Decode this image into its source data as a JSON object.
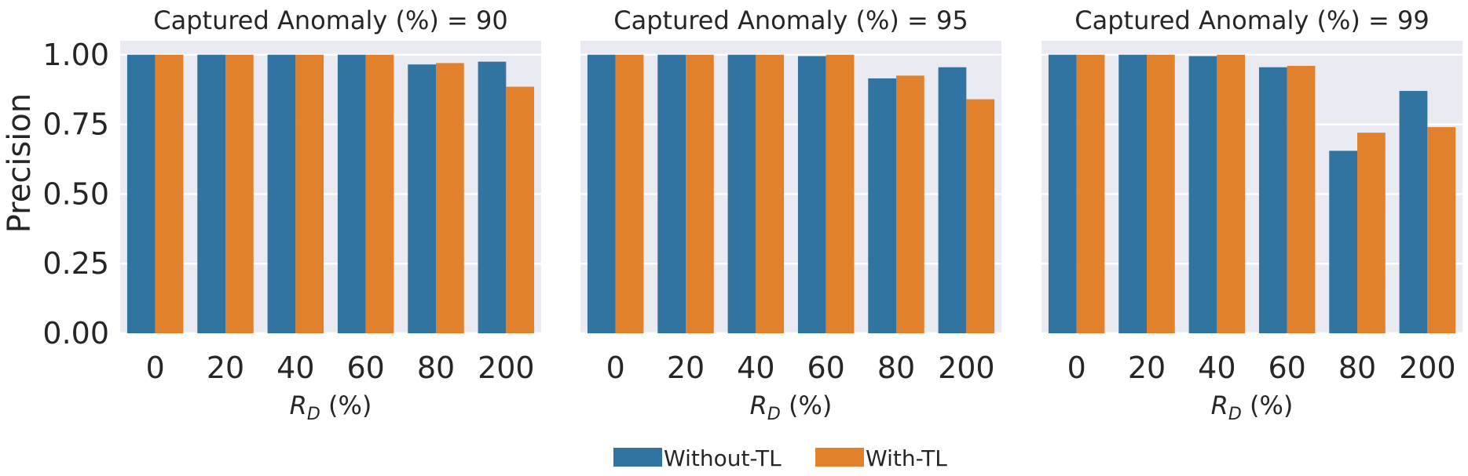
{
  "chart_data": [
    {
      "type": "bar",
      "title": "Captured Anomaly (%) = 90",
      "categories": [
        "0",
        "20",
        "40",
        "60",
        "80",
        "200"
      ],
      "series": [
        {
          "name": "Without-TL",
          "values": [
            1.0,
            1.0,
            1.0,
            1.0,
            0.965,
            0.975
          ]
        },
        {
          "name": "With-TL",
          "values": [
            1.0,
            1.0,
            1.0,
            1.0,
            0.97,
            0.885
          ]
        }
      ],
      "xlabel": "R_D (%)",
      "ylabel": "Precision",
      "ylim": [
        0,
        1.05
      ]
    },
    {
      "type": "bar",
      "title": "Captured Anomaly (%) = 95",
      "categories": [
        "0",
        "20",
        "40",
        "60",
        "80",
        "200"
      ],
      "series": [
        {
          "name": "Without-TL",
          "values": [
            1.0,
            1.0,
            1.0,
            0.995,
            0.915,
            0.955
          ]
        },
        {
          "name": "With-TL",
          "values": [
            1.0,
            1.0,
            1.0,
            1.0,
            0.925,
            0.84
          ]
        }
      ],
      "xlabel": "R_D (%)",
      "ylabel": "",
      "ylim": [
        0,
        1.05
      ]
    },
    {
      "type": "bar",
      "title": "Captured Anomaly (%) = 99",
      "categories": [
        "0",
        "20",
        "40",
        "60",
        "80",
        "200"
      ],
      "series": [
        {
          "name": "Without-TL",
          "values": [
            1.0,
            1.0,
            0.995,
            0.955,
            0.655,
            0.87
          ]
        },
        {
          "name": "With-TL",
          "values": [
            1.0,
            1.0,
            1.0,
            0.96,
            0.72,
            0.74
          ]
        }
      ],
      "xlabel": "R_D (%)",
      "ylabel": "",
      "ylim": [
        0,
        1.05
      ]
    }
  ],
  "y_ticks": [
    "0.00",
    "0.25",
    "0.50",
    "0.75",
    "1.00"
  ],
  "y_tick_values": [
    0,
    0.25,
    0.5,
    0.75,
    1.0
  ],
  "xlabel_main": "R",
  "xlabel_sub": "D",
  "xlabel_suffix": " (%)",
  "legend": {
    "placement": "bottom-center",
    "items": [
      {
        "name": "Without-TL",
        "color": "#3274a1"
      },
      {
        "name": "With-TL",
        "color": "#e1812c"
      }
    ]
  },
  "colors": {
    "plot_bg": "#eaeaf2",
    "grid": "#ffffff",
    "without_tl": "#3274a1",
    "with_tl": "#e1812c"
  },
  "grid": true
}
